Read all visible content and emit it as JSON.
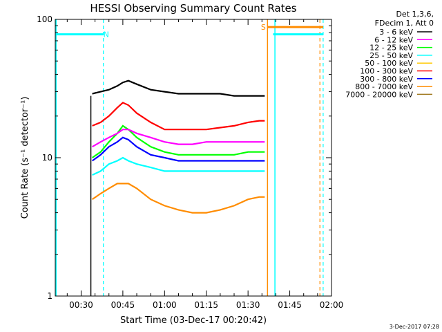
{
  "chart_data": {
    "type": "line",
    "title": "HESSI Observing Summary Count Rates",
    "xlabel": "Start Time (03-Dec-17 00:20:42)",
    "ylabel": "Count Rate (s⁻¹ detector⁻¹)",
    "y_scale": "log",
    "ylim": [
      1,
      100
    ],
    "y_ticks": [
      {
        "value": 1,
        "label": "1"
      },
      {
        "value": 10,
        "label": "10"
      },
      {
        "value": 100,
        "label": "100"
      }
    ],
    "x_start": "00:20:42",
    "x_end": "02:00:00",
    "x_ticks": [
      "00:30",
      "00:45",
      "01:00",
      "01:15",
      "01:30",
      "01:45",
      "02:00"
    ],
    "grid": false,
    "legend_header": [
      "Det 1,3,6,",
      "FDecim 1, Att 0"
    ],
    "legend_position": "top-right outside",
    "series": [
      {
        "name": "3 - 6 keV",
        "color": "#000000",
        "x": [
          "00:34:00",
          "00:37:00",
          "00:40:00",
          "00:43:00",
          "00:45:00",
          "00:47:00",
          "00:50:00",
          "00:55:00",
          "01:00:00",
          "01:05:00",
          "01:10:00",
          "01:15:00",
          "01:20:00",
          "01:25:00",
          "01:30:00",
          "01:34:00",
          "01:36:00"
        ],
        "y": [
          29,
          30,
          31,
          33,
          35,
          36,
          34,
          31,
          30,
          29,
          29,
          29,
          29,
          28,
          28,
          28,
          28
        ]
      },
      {
        "name": "6 - 12 keV",
        "color": "#ff00ff",
        "x": [
          "00:34:00",
          "00:37:00",
          "00:40:00",
          "00:43:00",
          "00:45:00",
          "00:47:00",
          "00:50:00",
          "00:55:00",
          "01:00:00",
          "01:05:00",
          "01:10:00",
          "01:15:00",
          "01:20:00",
          "01:25:00",
          "01:30:00",
          "01:34:00",
          "01:36:00"
        ],
        "y": [
          12,
          13,
          14,
          15,
          16,
          16,
          15,
          14,
          13,
          12.5,
          12.5,
          13,
          13,
          13,
          13,
          13,
          13
        ]
      },
      {
        "name": "12 - 25 keV",
        "color": "#00ff00",
        "x": [
          "00:34:00",
          "00:37:00",
          "00:40:00",
          "00:43:00",
          "00:45:00",
          "00:47:00",
          "00:50:00",
          "00:55:00",
          "01:00:00",
          "01:05:00",
          "01:10:00",
          "01:15:00",
          "01:20:00",
          "01:25:00",
          "01:30:00",
          "01:34:00",
          "01:36:00"
        ],
        "y": [
          10,
          11,
          13,
          15,
          17,
          16,
          14,
          12,
          11,
          10.5,
          10.5,
          10.5,
          10.5,
          10.5,
          11,
          11,
          11
        ]
      },
      {
        "name": "25 - 50 keV",
        "color": "#00ffff",
        "x": [
          "00:34:00",
          "00:37:00",
          "00:40:00",
          "00:43:00",
          "00:45:00",
          "00:47:00",
          "00:50:00",
          "00:55:00",
          "01:00:00",
          "01:05:00",
          "01:10:00",
          "01:15:00",
          "01:20:00",
          "01:25:00",
          "01:30:00",
          "01:34:00",
          "01:36:00"
        ],
        "y": [
          7.5,
          8,
          9,
          9.5,
          10,
          9.5,
          9,
          8.5,
          8,
          8,
          8,
          8,
          8,
          8,
          8,
          8,
          8
        ]
      },
      {
        "name": "50 - 100 keV",
        "color": "#ffc800",
        "x": [],
        "y": []
      },
      {
        "name": "100 - 300 keV",
        "color": "#ff0000",
        "x": [
          "00:34:00",
          "00:37:00",
          "00:40:00",
          "00:43:00",
          "00:45:00",
          "00:47:00",
          "00:50:00",
          "00:55:00",
          "01:00:00",
          "01:05:00",
          "01:10:00",
          "01:15:00",
          "01:20:00",
          "01:25:00",
          "01:30:00",
          "01:34:00",
          "01:36:00"
        ],
        "y": [
          17,
          18,
          20,
          23,
          25,
          24,
          21,
          18,
          16,
          16,
          16,
          16,
          16.5,
          17,
          18,
          18.5,
          18.5
        ]
      },
      {
        "name": "300 - 800 keV",
        "color": "#0000ff",
        "x": [
          "00:34:00",
          "00:37:00",
          "00:40:00",
          "00:43:00",
          "00:45:00",
          "00:47:00",
          "00:50:00",
          "00:55:00",
          "01:00:00",
          "01:05:00",
          "01:10:00",
          "01:15:00",
          "01:20:00",
          "01:25:00",
          "01:30:00",
          "01:34:00",
          "01:36:00"
        ],
        "y": [
          9.5,
          10.5,
          12,
          13,
          14,
          13.5,
          12,
          10.5,
          10,
          9.5,
          9.5,
          9.5,
          9.5,
          9.5,
          9.5,
          9.5,
          9.5
        ]
      },
      {
        "name": "800 - 7000 keV",
        "color": "#ff8c00",
        "x": [
          "00:34:00",
          "00:37:00",
          "00:40:00",
          "00:43:00",
          "00:45:00",
          "00:47:00",
          "00:50:00",
          "00:55:00",
          "01:00:00",
          "01:05:00",
          "01:10:00",
          "01:15:00",
          "01:20:00",
          "01:25:00",
          "01:30:00",
          "01:34:00",
          "01:36:00"
        ],
        "y": [
          5,
          5.5,
          6,
          6.5,
          6.5,
          6.5,
          6,
          5,
          4.5,
          4.2,
          4,
          4,
          4.2,
          4.5,
          5,
          5.2,
          5.2
        ]
      },
      {
        "name": "7000 - 20000 keV",
        "color": "#a0791f",
        "x": [],
        "y": []
      }
    ],
    "annotations": {
      "saa_segments": [
        {
          "label": "",
          "start": "00:20:42",
          "end": "00:38:00",
          "color": "#00ffff",
          "level": 78
        },
        {
          "label": "S",
          "start": "01:37:00",
          "end": "01:57:00",
          "color": "#ff8c00",
          "level": 88
        },
        {
          "label": "",
          "start": "01:39:00",
          "end": "01:57:00",
          "color": "#00ffff",
          "level": 78
        }
      ],
      "segment_labels": [
        {
          "text": "N",
          "time": "00:39:00",
          "color": "#00ffff",
          "level": 78
        },
        {
          "text": "S",
          "time": "01:35:30",
          "color": "#ff8c00",
          "level": 88
        }
      ],
      "solid_vlines": [
        {
          "time": "00:21:00",
          "color": "#00ffff"
        },
        {
          "time": "00:33:30",
          "color": "#000000"
        },
        {
          "time": "01:37:00",
          "color": "#ff8c00"
        },
        {
          "time": "01:39:40",
          "color": "#00ffff"
        }
      ],
      "dashed_vlines": [
        {
          "time": "00:38:00",
          "color": "#00ffff"
        },
        {
          "time": "01:55:50",
          "color": "#ff8c00"
        },
        {
          "time": "01:57:00",
          "color": "#00ffff"
        }
      ]
    },
    "footer_stamp": "3-Dec-2017 07:28"
  }
}
